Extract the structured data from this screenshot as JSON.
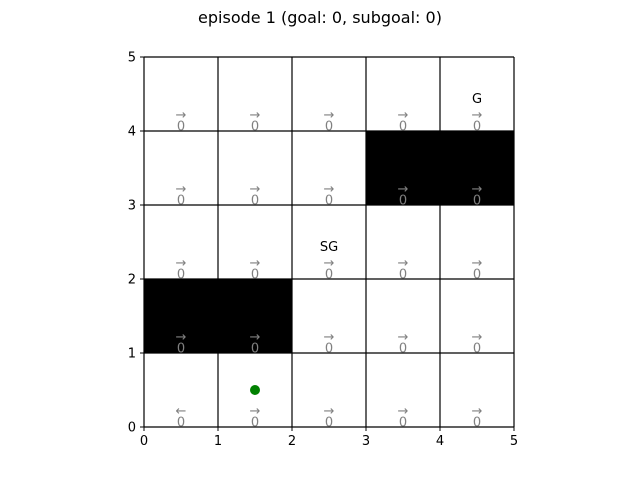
{
  "title": "episode 1 (goal: 0, subgoal: 0)",
  "grid": {
    "cols": 5,
    "rows": 5,
    "x_ticks": [
      "0",
      "1",
      "2",
      "3",
      "4",
      "5"
    ],
    "y_ticks": [
      "0",
      "1",
      "2",
      "3",
      "4",
      "5"
    ],
    "walls": [
      [
        3,
        3
      ],
      [
        4,
        3
      ],
      [
        0,
        1
      ],
      [
        1,
        1
      ]
    ],
    "cells": [
      {
        "x": 0,
        "y": 4,
        "arrow": "→",
        "value": "0"
      },
      {
        "x": 1,
        "y": 4,
        "arrow": "→",
        "value": "0"
      },
      {
        "x": 2,
        "y": 4,
        "arrow": "→",
        "value": "0"
      },
      {
        "x": 3,
        "y": 4,
        "arrow": "→",
        "value": "0"
      },
      {
        "x": 4,
        "y": 4,
        "arrow": "→",
        "value": "0"
      },
      {
        "x": 0,
        "y": 3,
        "arrow": "→",
        "value": "0"
      },
      {
        "x": 1,
        "y": 3,
        "arrow": "→",
        "value": "0"
      },
      {
        "x": 2,
        "y": 3,
        "arrow": "→",
        "value": "0"
      },
      {
        "x": 3,
        "y": 3,
        "arrow": "→",
        "value": "0"
      },
      {
        "x": 4,
        "y": 3,
        "arrow": "→",
        "value": "0"
      },
      {
        "x": 0,
        "y": 2,
        "arrow": "→",
        "value": "0"
      },
      {
        "x": 1,
        "y": 2,
        "arrow": "→",
        "value": "0"
      },
      {
        "x": 2,
        "y": 2,
        "arrow": "→",
        "value": "0"
      },
      {
        "x": 3,
        "y": 2,
        "arrow": "→",
        "value": "0"
      },
      {
        "x": 4,
        "y": 2,
        "arrow": "→",
        "value": "0"
      },
      {
        "x": 0,
        "y": 1,
        "arrow": "→",
        "value": "0"
      },
      {
        "x": 1,
        "y": 1,
        "arrow": "→",
        "value": "0"
      },
      {
        "x": 2,
        "y": 1,
        "arrow": "→",
        "value": "0"
      },
      {
        "x": 3,
        "y": 1,
        "arrow": "→",
        "value": "0"
      },
      {
        "x": 4,
        "y": 1,
        "arrow": "→",
        "value": "0"
      },
      {
        "x": 0,
        "y": 0,
        "arrow": "←",
        "value": "0"
      },
      {
        "x": 1,
        "y": 0,
        "arrow": "→",
        "value": "0"
      },
      {
        "x": 2,
        "y": 0,
        "arrow": "→",
        "value": "0"
      },
      {
        "x": 3,
        "y": 0,
        "arrow": "→",
        "value": "0"
      },
      {
        "x": 4,
        "y": 0,
        "arrow": "→",
        "value": "0"
      }
    ],
    "markers": [
      {
        "x": 4,
        "y": 4,
        "label": "G"
      },
      {
        "x": 2,
        "y": 2,
        "label": "SG"
      }
    ],
    "agent": {
      "x": 1,
      "y": 0,
      "color": "#008000"
    }
  },
  "colors": {
    "wall": "#000000",
    "grid_line": "#000000",
    "policy_text": "#808080"
  }
}
